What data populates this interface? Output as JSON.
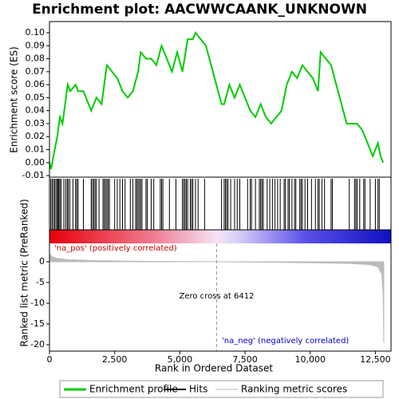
{
  "chart_data": [
    {
      "type": "line",
      "title": "Enrichment plot: AACWWCAANK_UNKNOWN",
      "ylabel": "Enrichment score (ES)",
      "x": [
        0,
        60,
        200,
        300,
        400,
        500,
        600,
        700,
        800,
        1000,
        1100,
        1300,
        1500,
        1600,
        1800,
        2000,
        2100,
        2200,
        2400,
        2600,
        2800,
        3000,
        3200,
        3400,
        3500,
        3700,
        3900,
        4100,
        4300,
        4500,
        4700,
        4900,
        5100,
        5300,
        5500,
        5600,
        5800,
        6000,
        6200,
        6400,
        6600,
        6700,
        6900,
        7100,
        7300,
        7500,
        7700,
        7900,
        8100,
        8300,
        8500,
        8700,
        8900,
        9100,
        9300,
        9500,
        9700,
        9900,
        10100,
        10300,
        10400,
        10600,
        10800,
        11000,
        11200,
        11400,
        11600,
        11800,
        12000,
        12200,
        12400,
        12600,
        12700,
        12800
      ],
      "series": [
        {
          "name": "Enrichment profile",
          "color": "#00cc00",
          "values": [
            0,
            -0.005,
            0.01,
            0.02,
            0.035,
            0.03,
            0.045,
            0.06,
            0.055,
            0.06,
            0.055,
            0.055,
            0.045,
            0.04,
            0.05,
            0.045,
            0.06,
            0.075,
            0.07,
            0.065,
            0.055,
            0.05,
            0.055,
            0.07,
            0.085,
            0.08,
            0.08,
            0.075,
            0.09,
            0.08,
            0.07,
            0.085,
            0.07,
            0.095,
            0.095,
            0.1,
            0.095,
            0.09,
            0.075,
            0.06,
            0.045,
            0.045,
            0.06,
            0.05,
            0.06,
            0.05,
            0.04,
            0.035,
            0.045,
            0.035,
            0.03,
            0.035,
            0.04,
            0.06,
            0.07,
            0.065,
            0.075,
            0.07,
            0.065,
            0.055,
            0.085,
            0.08,
            0.075,
            0.06,
            0.045,
            0.03,
            0.03,
            0.03,
            0.025,
            0.015,
            0.005,
            0.015,
            0.005,
            0
          ]
        }
      ],
      "xlim": [
        0,
        13100
      ],
      "ylim": [
        -0.0112,
        0.1086
      ],
      "yticks": [
        -0.01,
        {
          "value": 0,
          "label": "0.00"
        },
        0.01,
        0.02,
        0.03,
        0.04,
        0.05,
        0.06,
        0.07,
        0.08,
        0.09,
        {
          "value": 0.1,
          "label": "0.10"
        }
      ]
    },
    {
      "type": "rug",
      "series": [
        {
          "name": "Hits",
          "color": "#000000",
          "values": [
            50,
            100,
            150,
            200,
            250,
            300,
            330,
            360,
            400,
            450,
            550,
            620,
            680,
            720,
            780,
            900,
            1000,
            1050,
            1100,
            1300,
            1600,
            1650,
            1700,
            1750,
            1800,
            1900,
            2050,
            2100,
            2150,
            2200,
            2250,
            2300,
            2500,
            2600,
            2700,
            2800,
            2900,
            3100,
            3200,
            3300,
            3350,
            3400,
            3450,
            3500,
            3550,
            3700,
            3750,
            3900,
            4000,
            4250,
            4300,
            4350,
            4600,
            4850,
            5100,
            5150,
            5200,
            5250,
            5300,
            5400,
            5450,
            5500,
            5600,
            5700,
            5950,
            6600,
            6700,
            6750,
            6800,
            6850,
            6950,
            7100,
            7200,
            7300,
            7600,
            7700,
            7750,
            7900,
            8050,
            8100,
            8150,
            8200,
            8350,
            8450,
            8550,
            8650,
            8750,
            8850,
            9000,
            9050,
            9150,
            9200,
            9300,
            9400,
            9450,
            9600,
            9650,
            9700,
            9800,
            9900,
            10050,
            10200,
            10300,
            10350,
            10450,
            10550,
            10800,
            10850,
            11500,
            11700,
            11750,
            11800,
            11900,
            12050,
            12100,
            12300,
            12500,
            12600,
            12650
          ]
        }
      ],
      "xlim": [
        0,
        13100
      ]
    },
    {
      "type": "area",
      "ylabel": "Ranked list metric (PreRanked)",
      "xlabel": "Rank in Ordered Dataset",
      "x": [
        0,
        100,
        300,
        700,
        1500,
        3000,
        5000,
        6412,
        8000,
        10000,
        11500,
        12300,
        12600,
        12750,
        12800,
        12820
      ],
      "series": [
        {
          "name": "Ranking metric scores",
          "color": "#bbbbbb",
          "values": [
            2,
            1.2,
            0.8,
            0.5,
            0.3,
            0.15,
            0.05,
            0,
            -0.1,
            -0.25,
            -0.4,
            -0.7,
            -1.2,
            -3,
            -8,
            -19.5
          ]
        }
      ],
      "xlim": [
        0,
        13100
      ],
      "ylim": [
        -21.54,
        4.42
      ],
      "yticks": [
        0,
        -5,
        -10,
        -15,
        -20
      ],
      "xticks": [
        0,
        {
          "value": 2500,
          "label": "2,500"
        },
        {
          "value": 5000,
          "label": "5,000"
        },
        {
          "value": 7500,
          "label": "7,500"
        },
        {
          "value": 10000,
          "label": "10,000"
        },
        {
          "value": 12500,
          "label": "12,500"
        }
      ],
      "zero_cross": 6412,
      "annotations": [
        "'na_pos' (positively correlated)",
        "Zero cross at 6412",
        "'na_neg' (negatively correlated)"
      ]
    }
  ]
}
